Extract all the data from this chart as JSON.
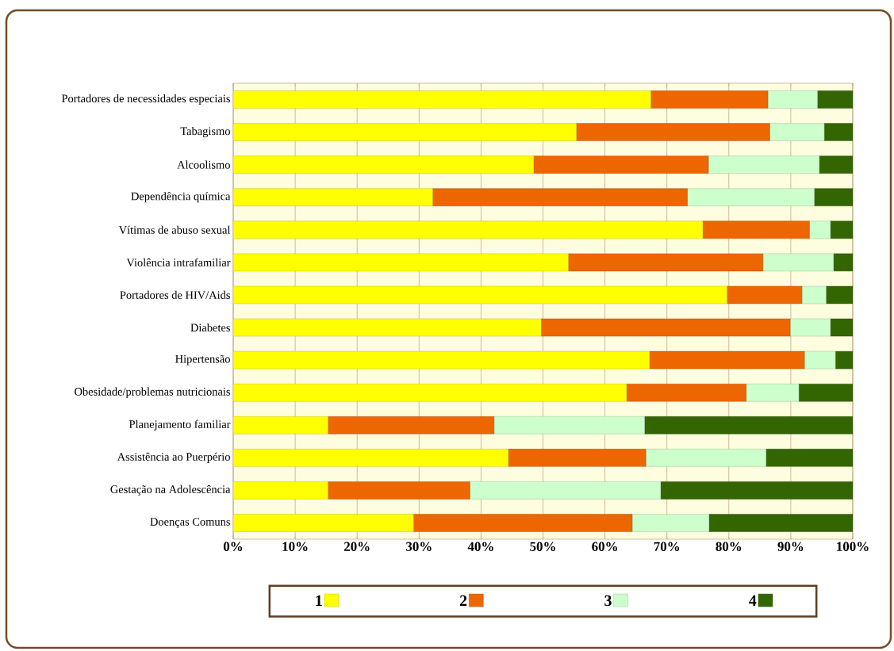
{
  "chart_data": {
    "type": "bar",
    "orientation": "horizontal",
    "stacked": true,
    "categories": [
      "Portadores de necessidades especiais",
      "Tabagismo",
      "Alcoolismo",
      "Dependência química",
      "Vítimas de abuso sexual",
      "Violência intrafamiliar",
      "Portadores de HIV/Aids",
      "Diabetes",
      "Hipertensão",
      "Obesidade/problemas nutricionais",
      "Planejamento familiar",
      "Assistência ao Puerpério",
      "Gestação na Adolescência",
      "Doenças Comuns"
    ],
    "series": [
      {
        "name": "1",
        "color": "#ffff00",
        "values": [
          67.4,
          55.4,
          48.5,
          32.2,
          75.8,
          54.1,
          79.7,
          49.7,
          67.2,
          63.5,
          15.3,
          44.4,
          15.3,
          29.1
        ]
      },
      {
        "name": "2",
        "color": "#ee6600",
        "values": [
          18.9,
          31.2,
          28.2,
          41.1,
          17.2,
          31.4,
          12.1,
          40.2,
          25.0,
          19.3,
          26.8,
          22.2,
          22.9,
          35.3
        ]
      },
      {
        "name": "3",
        "color": "#ccffcc",
        "values": [
          8.0,
          8.8,
          17.9,
          20.5,
          3.4,
          11.4,
          3.9,
          6.5,
          5.0,
          8.5,
          24.3,
          19.4,
          30.8,
          12.4
        ]
      },
      {
        "name": "4",
        "color": "#336600",
        "values": [
          5.7,
          4.6,
          5.4,
          6.2,
          3.6,
          3.1,
          4.3,
          3.6,
          2.8,
          8.7,
          33.6,
          14.0,
          31.0,
          23.2
        ]
      }
    ],
    "xlim": [
      0,
      100
    ],
    "xticks": [
      {
        "value": 0,
        "label": "0%"
      },
      {
        "value": 10,
        "label": "10%"
      },
      {
        "value": 20,
        "label": "20%"
      },
      {
        "value": 30,
        "label": "30%"
      },
      {
        "value": 40,
        "label": "40%"
      },
      {
        "value": 50,
        "label": "50%"
      },
      {
        "value": 60,
        "label": "60%"
      },
      {
        "value": 70,
        "label": "70%"
      },
      {
        "value": 80,
        "label": "80%"
      },
      {
        "value": 90,
        "label": "90%"
      },
      {
        "value": 100,
        "label": "100%"
      }
    ],
    "grid": "x",
    "legend": "bottom"
  }
}
